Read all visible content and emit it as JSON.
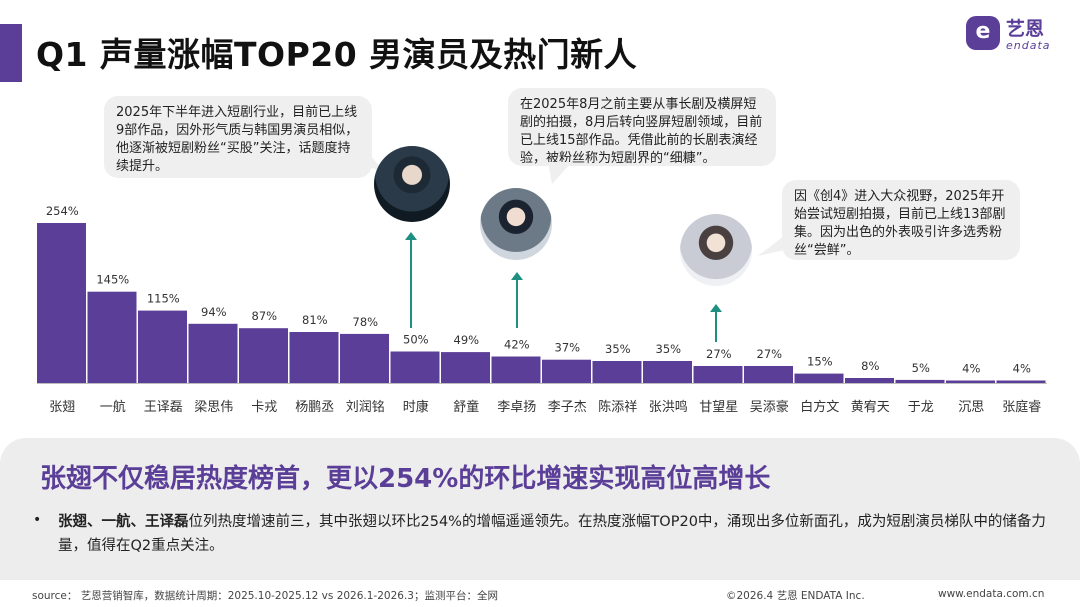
{
  "page": {
    "title": "Q1 声量涨幅TOP20 男演员及热门新人",
    "logo": {
      "mark": "e",
      "cn": "艺恩",
      "en": "endata"
    }
  },
  "callouts": [
    {
      "text": "2025年下半年进入短剧行业，目前已上线9部作品，因外形气质与韩国男演员相似，他逐渐被短剧粉丝“买股”关注，话题度持续提升。"
    },
    {
      "text": "在2025年8月之前主要从事长剧及横屏短剧的拍摄，8月后转向竖屏短剧领域，目前已上线15部作品。凭借此前的长剧表演经验，被粉丝称为短剧界的“细糠”。"
    },
    {
      "text": "因《创4》进入大众视野，2025年开始尝试短剧拍摄，目前已上线13部剧集。因为出色的外表吸引许多选秀粉丝“尝鲜”。"
    }
  ],
  "chart_data": {
    "type": "bar",
    "categories": [
      "张翅",
      "一航",
      "王译磊",
      "梁思伟",
      "卡戎",
      "杨鹏丞",
      "刘润铭",
      "时康",
      "舒童",
      "李卓扬",
      "李子杰",
      "陈添祥",
      "张洪鸣",
      "甘望星",
      "吴添豪",
      "白方文",
      "黄宥天",
      "于龙",
      "沉思",
      "张庭睿"
    ],
    "values": [
      254,
      145,
      115,
      94,
      87,
      81,
      78,
      50,
      49,
      42,
      37,
      35,
      35,
      27,
      27,
      15,
      8,
      5,
      4,
      4
    ],
    "value_labels": [
      "254%",
      "145%",
      "115%",
      "94%",
      "87%",
      "81%",
      "78%",
      "50%",
      "49%",
      "42%",
      "37%",
      "35%",
      "35%",
      "27%",
      "27%",
      "15%",
      "8%",
      "5%",
      "4%",
      "4%"
    ],
    "ylim": [
      0,
      254
    ],
    "bar_color": "#5b3e98",
    "highlight_arrow_color": "#1e8f80",
    "highlighted": [
      "时康",
      "李卓扬",
      "甘望星"
    ]
  },
  "summary": {
    "headline": "张翅不仅稳居热度榜首，更以254%的环比增速实现高位高增长",
    "bullet": "•",
    "names_bold": "张翅、一航、王译磊",
    "rest": "位列热度增速前三，其中张翅以环比254%的增幅遥遥领先。在热度涨幅TOP20中，涌现出多位新面孔，成为短剧演员梯队中的储备力量，值得在Q2重点关注。"
  },
  "footer": {
    "source": "source： 艺恩营销智库，数据统计周期：2025.10-2025.12 vs 2026.1-2026.3；监测平台：全网",
    "copyright": "©2026.4 艺恩 ENDATA Inc.",
    "url": "www.endata.com.cn"
  }
}
